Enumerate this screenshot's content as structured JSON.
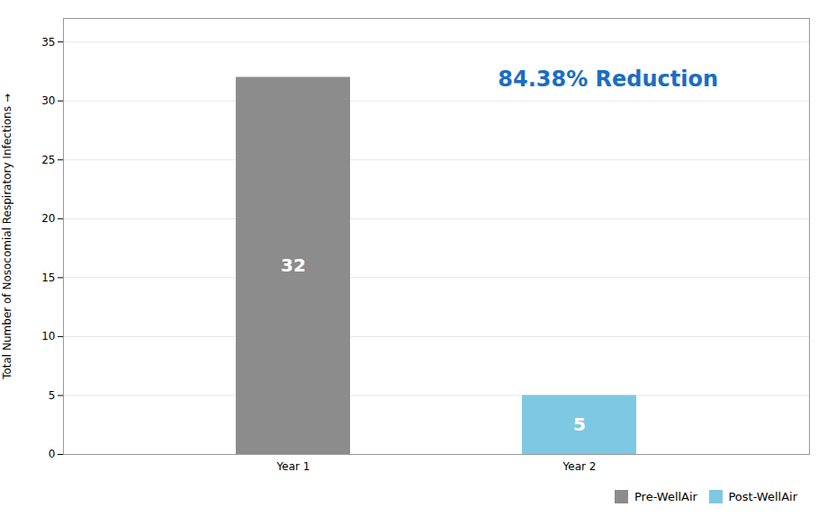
{
  "chart_data": {
    "type": "bar",
    "categories": [
      "Year 1",
      "Year 2"
    ],
    "series": [
      {
        "name": "Pre-WellAir",
        "color": "#8c8c8c",
        "values": [
          32,
          null
        ]
      },
      {
        "name": "Post-WellAir",
        "color": "#7ec8e3",
        "values": [
          null,
          5
        ]
      }
    ],
    "ylabel": "Total Number of Nosocomial Respiratory Infections",
    "ylim": [
      0,
      37
    ],
    "yticks": [
      0,
      5,
      10,
      15,
      20,
      25,
      30,
      35
    ],
    "grid": true,
    "data_labels": true,
    "legend": "lower right",
    "annotations": [
      {
        "text": "84.38% Reduction",
        "color": "#1a6ec2"
      }
    ]
  }
}
